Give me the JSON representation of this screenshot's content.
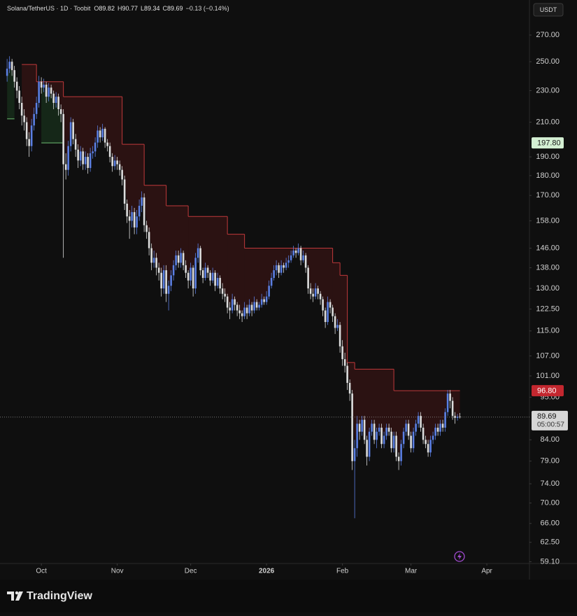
{
  "chart_data": {
    "type": "candlestick",
    "title": "Solana/TetherUS · 1D · Toobit",
    "ohlc_labels": [
      "O",
      "H",
      "L",
      "C"
    ],
    "change": "−0.13 (−0.14%)",
    "currency": "USDT",
    "up_color": "#5b7fe3",
    "down_color": "#dcdcdc",
    "log_scale": true,
    "ylim": [
      58.8,
      298.7
    ],
    "xlim": [
      -2.9,
      213.4
    ],
    "yticks": [
      {
        "value": 270,
        "label": "270.00"
      },
      {
        "value": 250,
        "label": "250.00"
      },
      {
        "value": 230,
        "label": "230.00"
      },
      {
        "value": 210,
        "label": "210.00"
      },
      {
        "value": 190,
        "label": "190.00"
      },
      {
        "value": 180,
        "label": "180.00"
      },
      {
        "value": 170,
        "label": "170.00"
      },
      {
        "value": 158,
        "label": "158.00"
      },
      {
        "value": 146,
        "label": "146.00"
      },
      {
        "value": 138,
        "label": "138.00"
      },
      {
        "value": 130,
        "label": "130.00"
      },
      {
        "value": 122.5,
        "label": "122.50"
      },
      {
        "value": 115,
        "label": "115.00"
      },
      {
        "value": 107,
        "label": "107.00"
      },
      {
        "value": 101,
        "label": "101.00"
      },
      {
        "value": 95,
        "label": "95.00"
      },
      {
        "value": 84,
        "label": "84.00"
      },
      {
        "value": 79,
        "label": "79.00"
      },
      {
        "value": 74,
        "label": "74.00"
      },
      {
        "value": 70,
        "label": "70.00"
      },
      {
        "value": 66,
        "label": "66.00"
      },
      {
        "value": 62.5,
        "label": "62.50"
      },
      {
        "value": 59.1,
        "label": "59.10"
      }
    ],
    "xticks": [
      {
        "value": 14,
        "label": "Oct"
      },
      {
        "value": 45,
        "label": "Nov"
      },
      {
        "value": 75,
        "label": "Dec"
      },
      {
        "value": 106,
        "label": "2026"
      },
      {
        "value": 137,
        "label": "Feb"
      },
      {
        "value": 165,
        "label": "Mar"
      },
      {
        "value": 196,
        "label": "Apr"
      }
    ],
    "ohlc": [
      [
        240,
        252,
        236,
        245
      ],
      [
        245,
        254,
        242,
        250
      ],
      [
        250,
        252,
        240,
        244
      ],
      [
        244,
        247,
        232,
        236
      ],
      [
        236,
        239,
        225,
        230
      ],
      [
        230,
        233,
        218,
        222
      ],
      [
        222,
        226,
        208,
        214
      ],
      [
        214,
        218,
        205,
        210
      ],
      [
        210,
        213,
        196,
        200
      ],
      [
        200,
        204,
        190,
        196
      ],
      [
        196,
        212,
        193,
        208
      ],
      [
        208,
        219,
        205,
        215
      ],
      [
        215,
        226,
        212,
        222
      ],
      [
        222,
        240,
        219,
        236
      ],
      [
        236,
        239,
        228,
        232
      ],
      [
        232,
        238,
        229,
        234
      ],
      [
        234,
        236,
        222,
        226
      ],
      [
        226,
        235,
        223,
        232
      ],
      [
        232,
        234,
        225,
        228
      ],
      [
        228,
        230,
        218,
        222
      ],
      [
        222,
        229,
        219,
        226
      ],
      [
        226,
        228,
        214,
        218
      ],
      [
        218,
        221,
        210,
        215
      ],
      [
        215,
        218,
        142,
        186
      ],
      [
        186,
        192,
        178,
        183
      ],
      [
        183,
        199,
        180,
        196
      ],
      [
        196,
        213,
        193,
        210
      ],
      [
        210,
        212,
        197,
        200
      ],
      [
        200,
        203,
        190,
        194
      ],
      [
        194,
        197,
        184,
        188
      ],
      [
        188,
        196,
        185,
        193
      ],
      [
        193,
        195,
        183,
        186
      ],
      [
        186,
        193,
        183,
        190
      ],
      [
        190,
        192,
        181,
        184
      ],
      [
        184,
        195,
        182,
        192
      ],
      [
        192,
        196,
        189,
        193
      ],
      [
        193,
        201,
        190,
        198
      ],
      [
        198,
        208,
        195,
        205
      ],
      [
        205,
        207,
        198,
        201
      ],
      [
        201,
        209,
        199,
        206
      ],
      [
        206,
        207,
        195,
        198
      ],
      [
        198,
        200,
        193,
        196
      ],
      [
        196,
        198,
        187,
        190
      ],
      [
        190,
        192,
        182,
        185
      ],
      [
        185,
        191,
        183,
        188
      ],
      [
        188,
        190,
        183,
        186
      ],
      [
        186,
        188,
        180,
        183
      ],
      [
        183,
        185,
        175,
        178
      ],
      [
        178,
        180,
        163,
        166
      ],
      [
        166,
        168,
        157,
        160
      ],
      [
        160,
        163,
        150,
        158
      ],
      [
        158,
        165,
        155,
        162
      ],
      [
        162,
        164,
        152,
        155
      ],
      [
        155,
        163,
        152,
        160
      ],
      [
        160,
        168,
        158,
        165
      ],
      [
        165,
        172,
        162,
        169
      ],
      [
        169,
        171,
        153,
        156
      ],
      [
        156,
        158,
        150,
        153
      ],
      [
        153,
        155,
        143,
        146
      ],
      [
        146,
        148,
        137,
        140
      ],
      [
        140,
        145,
        138,
        142
      ],
      [
        142,
        144,
        135,
        138
      ],
      [
        138,
        140,
        133,
        136
      ],
      [
        136,
        138,
        127,
        130
      ],
      [
        130,
        139,
        128,
        137
      ],
      [
        137,
        139,
        125,
        128
      ],
      [
        128,
        133,
        122,
        131
      ],
      [
        131,
        137,
        129,
        135
      ],
      [
        135,
        141,
        133,
        139
      ],
      [
        139,
        145,
        137,
        143
      ],
      [
        143,
        145,
        138,
        140
      ],
      [
        140,
        146,
        138,
        144
      ],
      [
        144,
        145,
        137,
        139
      ],
      [
        139,
        141,
        134,
        136
      ],
      [
        136,
        137,
        130,
        133
      ],
      [
        133,
        140,
        131,
        138
      ],
      [
        138,
        139,
        127,
        130
      ],
      [
        130,
        144,
        128,
        142
      ],
      [
        142,
        148,
        140,
        146
      ],
      [
        146,
        147,
        135,
        137
      ],
      [
        137,
        138,
        132,
        134
      ],
      [
        134,
        140,
        133,
        138
      ],
      [
        138,
        139,
        134,
        136
      ],
      [
        136,
        137,
        131,
        133
      ],
      [
        133,
        138,
        132,
        136
      ],
      [
        136,
        137,
        129,
        131
      ],
      [
        131,
        136,
        130,
        134
      ],
      [
        134,
        135,
        128,
        130
      ],
      [
        130,
        132,
        126,
        128
      ],
      [
        128,
        130,
        125,
        127
      ],
      [
        127,
        128,
        121,
        123
      ],
      [
        123,
        125,
        119,
        122
      ],
      [
        122,
        128,
        121,
        126
      ],
      [
        126,
        127,
        122,
        124
      ],
      [
        124,
        125,
        120,
        122
      ],
      [
        122,
        124,
        119,
        121
      ],
      [
        121,
        122,
        118,
        120
      ],
      [
        120,
        125,
        119,
        123
      ],
      [
        123,
        124,
        119,
        121
      ],
      [
        121,
        126,
        120,
        124
      ],
      [
        124,
        125,
        120,
        122
      ],
      [
        122,
        127,
        121,
        125
      ],
      [
        125,
        126,
        122,
        123
      ],
      [
        123,
        125,
        122,
        124
      ],
      [
        124,
        128,
        123,
        126
      ],
      [
        126,
        127,
        124,
        125
      ],
      [
        125,
        129,
        124,
        127
      ],
      [
        127,
        133,
        126,
        131
      ],
      [
        131,
        136,
        130,
        134
      ],
      [
        134,
        139,
        133,
        137
      ],
      [
        137,
        141,
        135,
        139
      ],
      [
        139,
        140,
        134,
        136
      ],
      [
        136,
        141,
        135,
        139
      ],
      [
        139,
        140,
        136,
        138
      ],
      [
        138,
        142,
        137,
        140
      ],
      [
        140,
        143,
        138,
        141
      ],
      [
        141,
        145,
        140,
        143
      ],
      [
        143,
        147,
        142,
        145
      ],
      [
        145,
        146,
        142,
        144
      ],
      [
        144,
        148,
        143,
        146
      ],
      [
        146,
        147,
        139,
        141
      ],
      [
        141,
        145,
        140,
        143
      ],
      [
        143,
        144,
        136,
        138
      ],
      [
        138,
        139,
        128,
        130
      ],
      [
        130,
        132,
        126,
        128
      ],
      [
        128,
        130,
        125,
        127
      ],
      [
        127,
        132,
        126,
        130
      ],
      [
        130,
        131,
        126,
        128
      ],
      [
        128,
        129,
        124,
        126
      ],
      [
        126,
        127,
        120,
        122
      ],
      [
        122,
        123,
        116,
        118
      ],
      [
        118,
        127,
        117,
        125
      ],
      [
        125,
        126,
        121,
        123
      ],
      [
        123,
        124,
        118,
        120
      ],
      [
        120,
        121,
        114,
        116
      ],
      [
        116,
        119,
        115,
        117
      ],
      [
        117,
        118,
        108,
        110
      ],
      [
        110,
        112,
        104,
        106
      ],
      [
        106,
        108,
        102,
        104
      ],
      [
        104,
        105,
        97,
        99
      ],
      [
        99,
        100,
        94,
        96
      ],
      [
        96,
        97,
        77,
        79
      ],
      [
        79,
        84,
        67,
        82
      ],
      [
        82,
        90,
        80,
        88
      ],
      [
        88,
        89,
        84,
        86
      ],
      [
        86,
        90,
        85,
        89
      ],
      [
        89,
        90,
        83,
        84
      ],
      [
        84,
        85,
        78,
        80
      ],
      [
        80,
        87,
        79,
        86
      ],
      [
        86,
        89,
        85,
        88
      ],
      [
        88,
        89,
        83,
        84
      ],
      [
        84,
        87,
        82,
        86
      ],
      [
        86,
        88,
        85,
        87
      ],
      [
        87,
        88,
        82,
        83
      ],
      [
        83,
        86,
        82,
        85
      ],
      [
        85,
        88,
        84,
        87
      ],
      [
        87,
        88,
        85,
        86
      ],
      [
        86,
        87,
        81,
        82
      ],
      [
        82,
        86,
        81,
        85
      ],
      [
        85,
        86,
        79,
        80
      ],
      [
        80,
        81,
        77,
        79
      ],
      [
        79,
        84,
        78,
        83
      ],
      [
        83,
        87,
        82,
        86
      ],
      [
        86,
        89,
        85,
        88
      ],
      [
        88,
        89,
        84,
        85
      ],
      [
        85,
        86,
        81,
        82
      ],
      [
        82,
        87,
        81,
        86
      ],
      [
        86,
        89,
        85,
        88
      ],
      [
        88,
        91,
        87,
        90
      ],
      [
        90,
        91,
        86,
        87
      ],
      [
        87,
        88,
        83,
        84
      ],
      [
        84,
        85,
        82,
        83
      ],
      [
        83,
        84,
        80,
        81
      ],
      [
        81,
        85,
        80,
        84
      ],
      [
        84,
        86,
        83,
        85
      ],
      [
        85,
        88,
        84,
        87
      ],
      [
        87,
        88,
        85,
        86
      ],
      [
        86,
        89,
        85,
        88
      ],
      [
        88,
        89,
        86,
        87
      ],
      [
        87,
        92,
        86,
        91
      ],
      [
        91,
        97,
        90,
        96
      ],
      [
        96,
        97,
        92,
        94
      ],
      [
        94,
        95,
        89,
        90
      ],
      [
        90,
        91,
        88,
        89.5
      ],
      [
        89.5,
        90.5,
        88.8,
        89.82
      ],
      [
        89.82,
        90.77,
        89.34,
        89.69
      ]
    ],
    "stop_short": {
      "color": "#c0393b",
      "fill": "rgba(120,30,30,0.28)",
      "steps": [
        {
          "from": 6,
          "to": 12,
          "value": 248
        },
        {
          "from": 12,
          "to": 23,
          "value": 236
        },
        {
          "from": 23,
          "to": 47,
          "value": 226
        },
        {
          "from": 47,
          "to": 56,
          "value": 197
        },
        {
          "from": 56,
          "to": 65,
          "value": 175
        },
        {
          "from": 65,
          "to": 74,
          "value": 165
        },
        {
          "from": 74,
          "to": 90,
          "value": 160
        },
        {
          "from": 90,
          "to": 97,
          "value": 152
        },
        {
          "from": 97,
          "to": 133,
          "value": 146
        },
        {
          "from": 133,
          "to": 136,
          "value": 140
        },
        {
          "from": 136,
          "to": 139,
          "value": 135
        },
        {
          "from": 139,
          "to": 142,
          "value": 105
        },
        {
          "from": 142,
          "to": 158,
          "value": 103
        },
        {
          "from": 158,
          "to": 185,
          "value": 96.8
        }
      ]
    },
    "stop_long": {
      "color": "#6fbf73",
      "fill": "rgba(40,110,50,0.25)",
      "steps": [
        {
          "from": 0,
          "to": 3,
          "value": 212
        },
        {
          "from": 14,
          "to": 23,
          "value": 197.8
        }
      ]
    },
    "markers": [
      {
        "value": 197.8,
        "label": "197.80",
        "color": "#d4efd3",
        "text_color": "#1a1a1a"
      },
      {
        "value": 96.8,
        "label": "96.80",
        "color": "#c3272f",
        "text_color": "#ffffff"
      }
    ],
    "countdown": "05:00:57"
  },
  "footer": {
    "brand": "TradingView"
  }
}
